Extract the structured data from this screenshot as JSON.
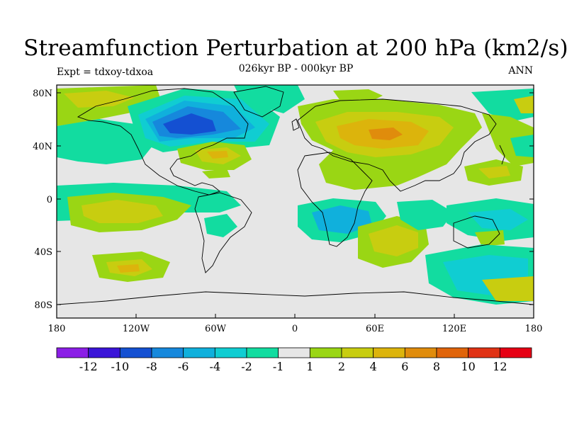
{
  "title": "Streamfunction Perturbation at 200 hPa (km2/s)",
  "subtitle": "026kyr BP - 000kyr BP",
  "left_label": "Expt = tdxoy-tdxoa",
  "right_label": "ANN",
  "map": {
    "background": "#e6e6e6",
    "lat_ticks": [
      "80N",
      "40N",
      "0",
      "40S",
      "80S"
    ],
    "lon_ticks": [
      "180",
      "120W",
      "60W",
      "0",
      "60E",
      "120E",
      "180"
    ]
  },
  "colorbar": {
    "colors": [
      "#8b1ee6",
      "#3a14d8",
      "#1450d2",
      "#1688dc",
      "#10b0dc",
      "#10cdd2",
      "#12dca0",
      "#e6e6e6",
      "#9ad614",
      "#c8cd10",
      "#dcb40c",
      "#e08c0c",
      "#e0640a",
      "#e03214",
      "#e60014"
    ],
    "labels": [
      "-12",
      "-10",
      "-8",
      "-6",
      "-4",
      "-2",
      "-1",
      "1",
      "2",
      "4",
      "6",
      "8",
      "10",
      "12"
    ]
  }
}
